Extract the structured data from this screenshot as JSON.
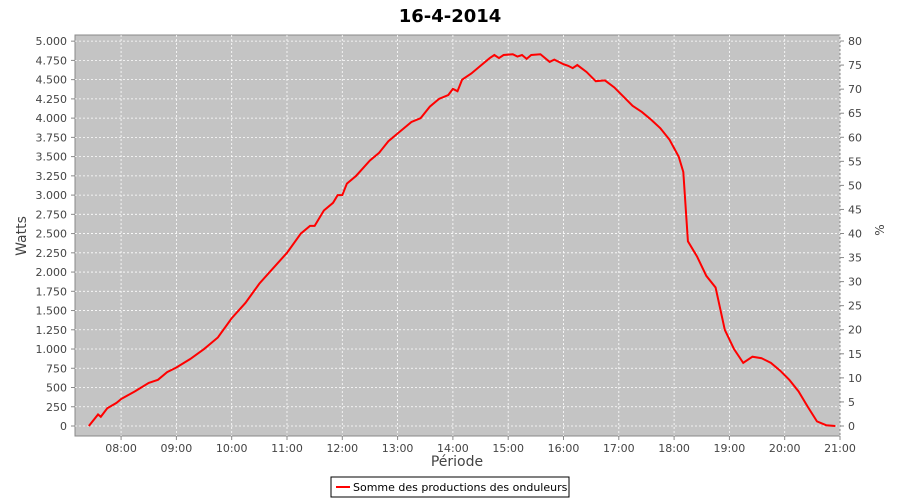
{
  "chart_data": {
    "type": "line",
    "title": "16-4-2014",
    "xlabel": "Période",
    "ylabel": "Watts",
    "y2label": "%",
    "x": [
      "07:25",
      "07:35",
      "07:38",
      "07:45",
      "07:55",
      "08:00",
      "08:15",
      "08:30",
      "08:40",
      "08:50",
      "09:00",
      "09:15",
      "09:30",
      "09:45",
      "10:00",
      "10:15",
      "10:30",
      "10:45",
      "11:00",
      "11:15",
      "11:25",
      "11:30",
      "11:40",
      "11:50",
      "11:55",
      "12:00",
      "12:05",
      "12:15",
      "12:30",
      "12:40",
      "12:50",
      "13:00",
      "13:15",
      "13:25",
      "13:35",
      "13:45",
      "13:55",
      "14:00",
      "14:05",
      "14:10",
      "14:20",
      "14:30",
      "14:40",
      "14:45",
      "14:50",
      "14:55",
      "15:05",
      "15:10",
      "15:15",
      "15:20",
      "15:25",
      "15:35",
      "15:45",
      "15:50",
      "16:00",
      "16:05",
      "16:10",
      "16:15",
      "16:25",
      "16:35",
      "16:45",
      "16:55",
      "17:05",
      "17:15",
      "17:25",
      "17:35",
      "17:45",
      "17:55",
      "18:05",
      "18:10",
      "18:15",
      "18:25",
      "18:35",
      "18:45",
      "18:55",
      "19:05",
      "19:15",
      "19:25",
      "19:35",
      "19:45",
      "19:55",
      "20:05",
      "20:15",
      "20:25",
      "20:35",
      "20:45",
      "20:55"
    ],
    "series": [
      {
        "name": "Somme des productions des onduleurs",
        "color": "#ff0000",
        "values": [
          0,
          150,
          120,
          230,
          300,
          350,
          450,
          560,
          600,
          700,
          760,
          870,
          1000,
          1150,
          1400,
          1600,
          1850,
          2050,
          2250,
          2500,
          2600,
          2600,
          2800,
          2900,
          3000,
          3000,
          3150,
          3250,
          3450,
          3550,
          3700,
          3800,
          3950,
          4000,
          4150,
          4250,
          4300,
          4380,
          4350,
          4500,
          4580,
          4680,
          4780,
          4820,
          4780,
          4820,
          4830,
          4800,
          4820,
          4770,
          4820,
          4830,
          4730,
          4760,
          4700,
          4680,
          4650,
          4690,
          4600,
          4480,
          4490,
          4400,
          4280,
          4160,
          4080,
          3980,
          3870,
          3720,
          3500,
          3300,
          2400,
          2200,
          1950,
          1800,
          1250,
          1000,
          820,
          900,
          880,
          820,
          720,
          600,
          450,
          250,
          60,
          10,
          0
        ]
      }
    ],
    "xlim": [
      "07:10",
      "21:00"
    ],
    "xticks": [
      "08:00",
      "09:00",
      "10:00",
      "11:00",
      "12:00",
      "13:00",
      "14:00",
      "15:00",
      "16:00",
      "17:00",
      "18:00",
      "19:00",
      "20:00",
      "21:00"
    ],
    "ylim": [
      -130,
      5080
    ],
    "yticks": [
      0,
      250,
      500,
      750,
      {
        "value": 1000,
        "label": "1.000"
      },
      {
        "value": 1250,
        "label": "1.250"
      },
      {
        "value": 1500,
        "label": "1.500"
      },
      {
        "value": 1750,
        "label": "1.750"
      },
      {
        "value": 2000,
        "label": "2.000"
      },
      {
        "value": 2250,
        "label": "2.250"
      },
      {
        "value": 2500,
        "label": "2.500"
      },
      {
        "value": 2750,
        "label": "2.750"
      },
      {
        "value": 3000,
        "label": "3.000"
      },
      {
        "value": 3250,
        "label": "3.250"
      },
      {
        "value": 3500,
        "label": "3.500"
      },
      {
        "value": 3750,
        "label": "3.750"
      },
      {
        "value": 4000,
        "label": "4.000"
      },
      {
        "value": 4250,
        "label": "4.250"
      },
      {
        "value": 4500,
        "label": "4.500"
      },
      {
        "value": 4750,
        "label": "4.750"
      },
      {
        "value": 5000,
        "label": "5.000"
      }
    ],
    "y2lim": [
      -2.08,
      81.25
    ],
    "y2ticks": [
      0,
      5,
      10,
      15,
      20,
      25,
      30,
      35,
      40,
      45,
      50,
      55,
      60,
      65,
      70,
      75,
      80
    ],
    "grid": true,
    "legend": "bottom"
  }
}
